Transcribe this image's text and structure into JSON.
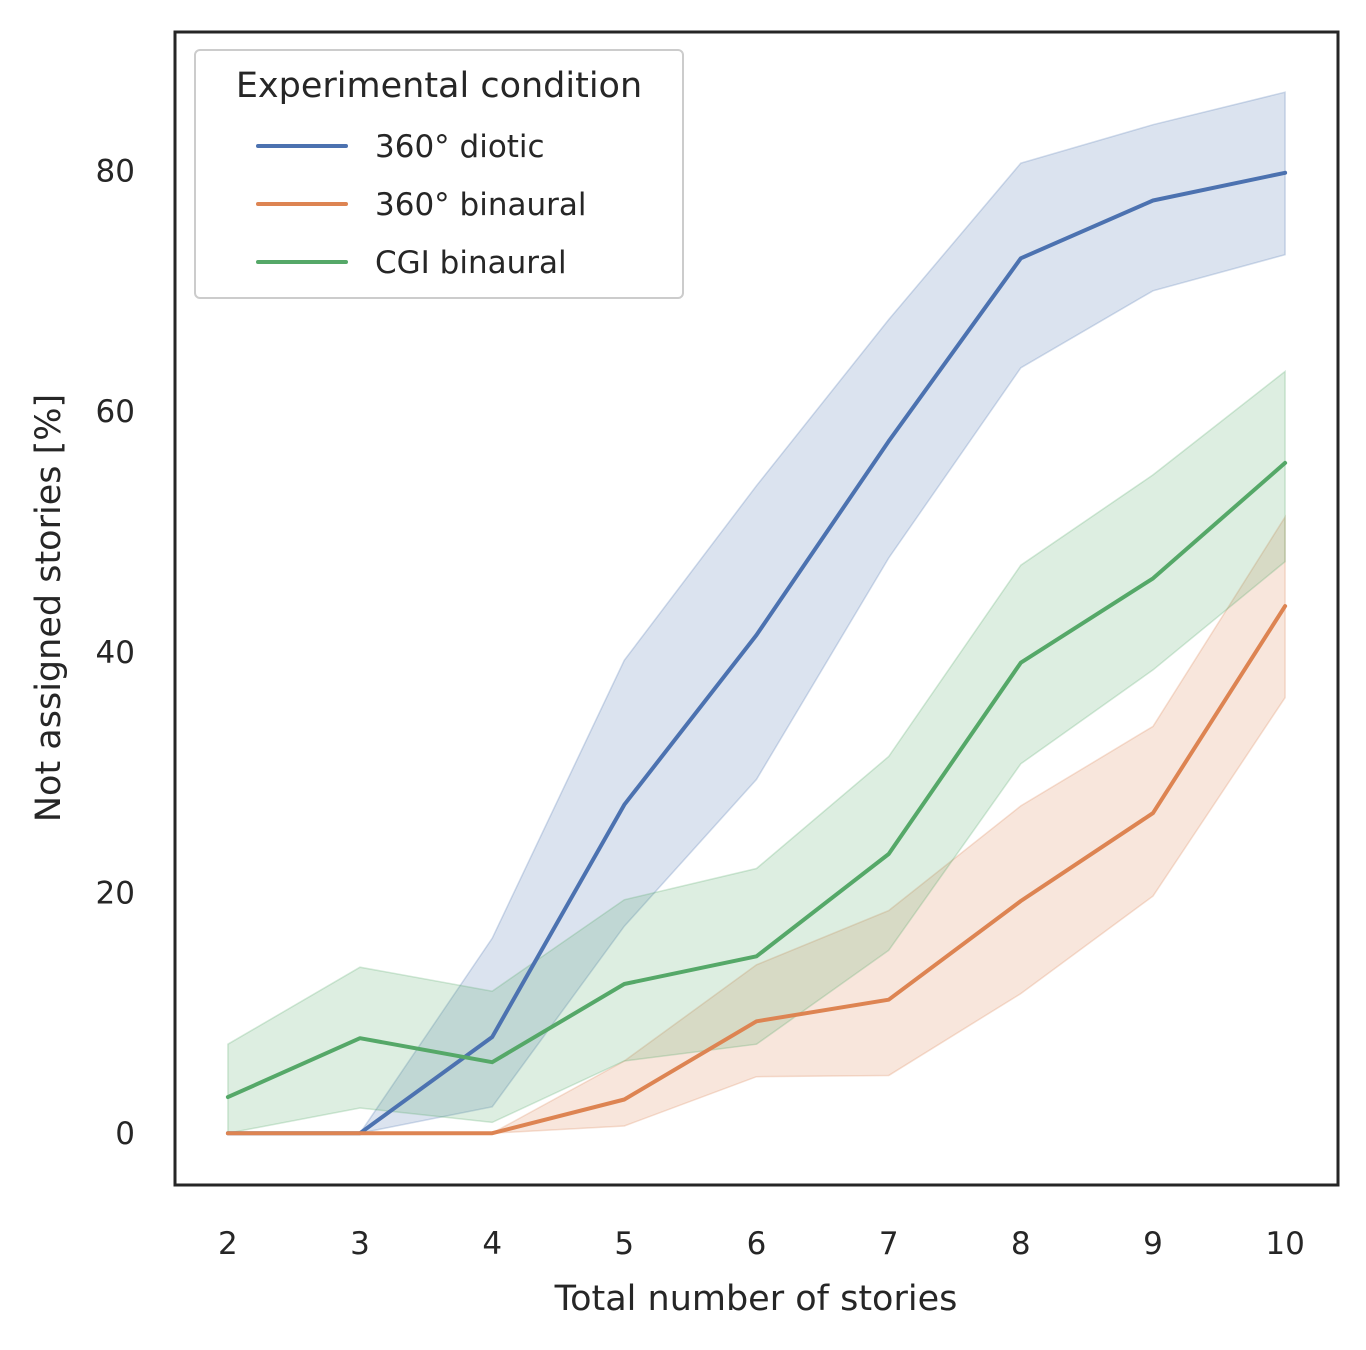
{
  "chart_data": {
    "type": "line",
    "title": "",
    "xlabel": "Total number of stories",
    "ylabel": "Not assigned stories [%]",
    "x": [
      2,
      3,
      4,
      5,
      6,
      7,
      8,
      9,
      10
    ],
    "x_ticks": [
      "2",
      "3",
      "4",
      "5",
      "6",
      "7",
      "8",
      "9",
      "10"
    ],
    "y_ticks": [
      "0",
      "20",
      "40",
      "60",
      "80"
    ],
    "xlim": [
      1.6,
      10.4
    ],
    "ylim": [
      -4.3,
      91.5
    ],
    "grid": false,
    "legend": {
      "title": "Experimental condition",
      "placement": "top-left"
    },
    "series": [
      {
        "name": "360° diotic",
        "color": "#4C72B0",
        "values": [
          0,
          0,
          8.0,
          27.3,
          41.4,
          57.5,
          72.7,
          77.5,
          79.8
        ],
        "ci_lower": [
          0,
          0,
          2.2,
          17.2,
          29.4,
          47.8,
          63.6,
          70.0,
          73.0
        ],
        "ci_upper": [
          0,
          0,
          16.2,
          39.3,
          53.8,
          67.6,
          80.6,
          83.8,
          86.5
        ]
      },
      {
        "name": "360° binaural",
        "color": "#DD8452",
        "values": [
          0,
          0,
          0,
          2.8,
          9.3,
          11.1,
          19.3,
          26.6,
          43.8
        ],
        "ci_lower": [
          0,
          0,
          0,
          0.6,
          4.7,
          4.8,
          11.6,
          19.7,
          36.2
        ],
        "ci_upper": [
          0,
          0,
          0,
          6.0,
          14.0,
          18.5,
          27.2,
          33.8,
          51.2
        ]
      },
      {
        "name": "CGI binaural",
        "color": "#55A868",
        "values": [
          3.0,
          7.9,
          5.9,
          12.4,
          14.7,
          23.2,
          39.1,
          46.1,
          55.7
        ],
        "ci_lower": [
          0,
          2.1,
          0.9,
          6.0,
          7.4,
          15.2,
          30.7,
          38.5,
          47.5
        ],
        "ci_upper": [
          7.4,
          13.8,
          11.8,
          19.4,
          22.0,
          31.3,
          47.2,
          54.7,
          63.3
        ]
      }
    ]
  }
}
